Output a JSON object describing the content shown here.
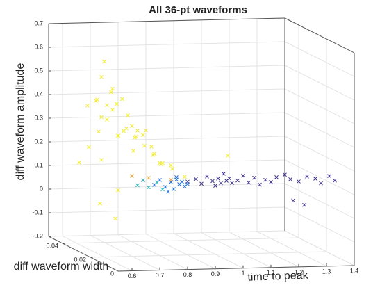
{
  "chart_data": {
    "type": "scatter3d",
    "title": "All 36-pt waveforms",
    "xlabel": "time to peak",
    "ylabel": "diff waveform width",
    "zlabel": "diff waveform amplitude",
    "xlim": [
      0.55,
      1.4
    ],
    "ylim": [
      0,
      0.05
    ],
    "zlim": [
      -0.2,
      0.7
    ],
    "xticks": [
      0.6,
      0.7,
      0.8,
      0.9,
      1,
      1.1,
      1.2,
      1.3,
      1.4
    ],
    "yticks": [
      0,
      0.02,
      0.04
    ],
    "zticks": [
      -0.2,
      -0.1,
      0,
      0.1,
      0.2,
      0.3,
      0.4,
      0.5,
      0.6,
      0.7
    ],
    "grid": true,
    "series": [
      {
        "color": "#f2ec22",
        "x": [
          0.62,
          0.63,
          0.64,
          0.65,
          0.66,
          0.67,
          0.675,
          0.68,
          0.69,
          0.7,
          0.7,
          0.71,
          0.72,
          0.72,
          0.73,
          0.74,
          0.75,
          0.75,
          0.76,
          0.77,
          0.78,
          0.79,
          0.8,
          0.81,
          0.82,
          0.83,
          0.84,
          0.85,
          0.86,
          0.87,
          0.88,
          0.89,
          0.9,
          0.92,
          0.94,
          0.61,
          0.66,
          0.7,
          0.74,
          0.78,
          0.64,
          0.69,
          1.12
        ],
        "y": [
          0.035,
          0.03,
          0.04,
          0.035,
          0.03,
          0.04,
          0.035,
          0.03,
          0.04,
          0.035,
          0.03,
          0.04,
          0.035,
          0.03,
          0.04,
          0.035,
          0.03,
          0.04,
          0.035,
          0.03,
          0.04,
          0.035,
          0.03,
          0.04,
          0.035,
          0.03,
          0.04,
          0.035,
          0.03,
          0.04,
          0.035,
          0.03,
          0.04,
          0.035,
          0.03,
          0.04,
          0.035,
          0.03,
          0.04,
          0.035,
          0.03,
          0.04,
          0.035
        ],
        "z": [
          0.22,
          0.3,
          0.38,
          0.42,
          0.35,
          0.4,
          0.58,
          0.48,
          0.33,
          0.45,
          0.28,
          0.38,
          0.4,
          0.3,
          0.36,
          0.42,
          0.32,
          0.25,
          0.35,
          0.3,
          0.28,
          0.26,
          0.3,
          0.24,
          0.22,
          0.2,
          0.25,
          0.18,
          0.16,
          0.2,
          0.14,
          0.15,
          0.13,
          0.12,
          0.1,
          0.14,
          -0.02,
          0.05,
          -0.1,
          0.2,
          0.18,
          0.5,
          0.17
        ]
      },
      {
        "color": "#3b2f8e",
        "x": [
          0.9,
          0.93,
          0.95,
          0.97,
          0.99,
          1.0,
          1.01,
          1.02,
          1.03,
          1.04,
          1.05,
          1.06,
          1.08,
          1.1,
          1.12,
          1.14,
          1.16,
          1.18,
          1.2,
          1.22,
          1.25,
          1.27,
          1.3,
          1.33,
          1.36,
          1.38,
          1.41,
          1.43,
          1.28,
          1.32
        ],
        "y": [
          0.02,
          0.02,
          0.02,
          0.02,
          0.02,
          0.02,
          0.02,
          0.02,
          0.02,
          0.02,
          0.02,
          0.02,
          0.02,
          0.02,
          0.02,
          0.02,
          0.02,
          0.02,
          0.02,
          0.02,
          0.02,
          0.02,
          0.02,
          0.02,
          0.02,
          0.02,
          0.02,
          0.02,
          0.02,
          0.02
        ],
        "z": [
          0.11,
          0.12,
          0.1,
          0.13,
          0.11,
          0.09,
          0.12,
          0.1,
          0.14,
          0.11,
          0.12,
          0.1,
          0.11,
          0.13,
          0.1,
          0.12,
          0.09,
          0.11,
          0.1,
          0.12,
          0.13,
          0.11,
          0.1,
          0.12,
          0.11,
          0.09,
          0.12,
          0.1,
          0.02,
          0.0
        ]
      },
      {
        "color": "#1f6fe0",
        "x": [
          0.78,
          0.8,
          0.82,
          0.84,
          0.85,
          0.86,
          0.87,
          0.88,
          0.89,
          0.9,
          0.83,
          0.86
        ],
        "y": [
          0.02,
          0.02,
          0.02,
          0.02,
          0.02,
          0.02,
          0.02,
          0.02,
          0.02,
          0.02,
          0.02,
          0.02
        ],
        "z": [
          0.1,
          0.12,
          0.09,
          0.11,
          0.08,
          0.12,
          0.1,
          0.11,
          0.09,
          0.1,
          0.07,
          0.13
        ]
      },
      {
        "color": "#1fb5b0",
        "x": [
          0.72,
          0.74,
          0.76,
          0.79,
          0.81
        ],
        "y": [
          0.02,
          0.02,
          0.02,
          0.02,
          0.02
        ],
        "z": [
          0.1,
          0.12,
          0.09,
          0.11,
          0.08
        ]
      },
      {
        "color": "#f0a53a",
        "x": [
          0.7,
          0.76,
          0.84
        ],
        "y": [
          0.02,
          0.02,
          0.02
        ],
        "z": [
          0.14,
          0.13,
          0.12
        ]
      }
    ]
  }
}
